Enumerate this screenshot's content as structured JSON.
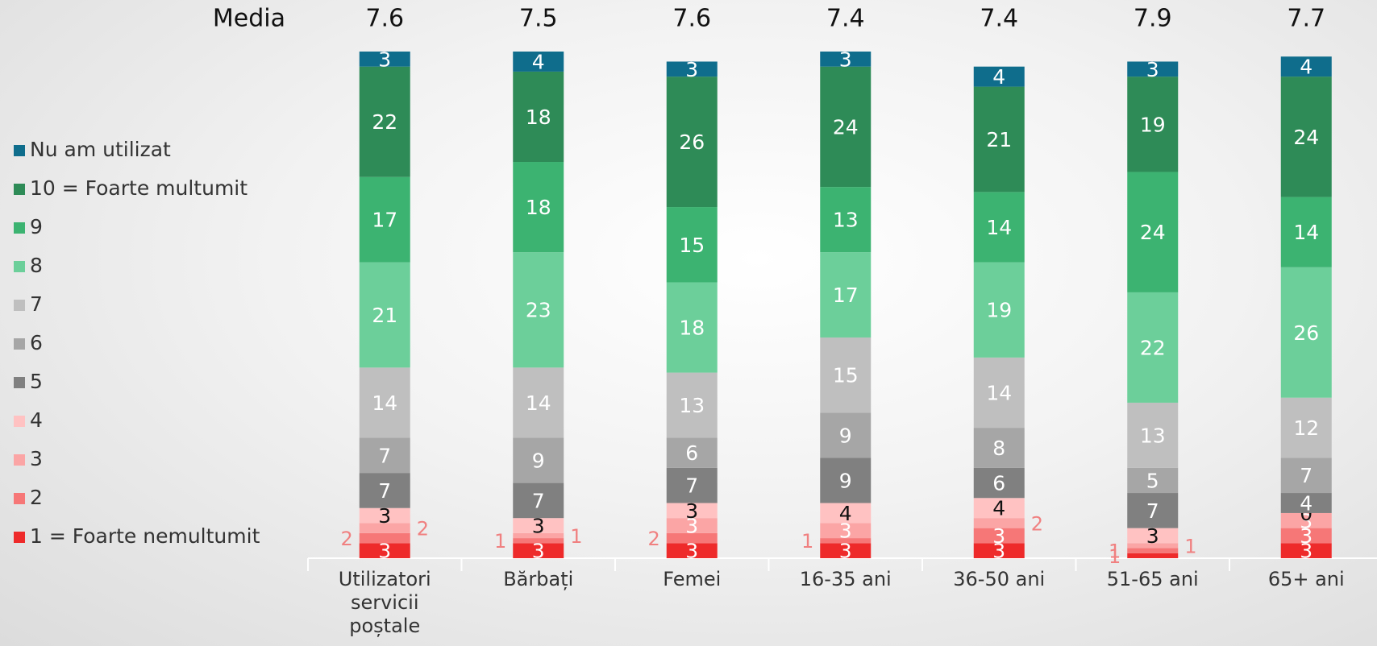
{
  "chart_data": {
    "type": "stacked_bar",
    "categories": [
      "Utilizatori servicii poștale",
      "Bărbați",
      "Femei",
      "16-35 ani",
      "36-50 ani",
      "51-65 ani",
      "65+ ani"
    ],
    "media": {
      "label": "Media",
      "values": [
        7.6,
        7.5,
        7.6,
        7.4,
        7.4,
        7.9,
        7.7
      ]
    },
    "ylim": [
      0,
      101
    ],
    "legend": "left",
    "series": [
      {
        "name": "1 = Foarte nemultumit",
        "color": "#ee2a2a",
        "values": [
          3,
          3,
          3,
          3,
          3,
          1,
          3
        ]
      },
      {
        "name": "2",
        "color": "#f67777",
        "values": [
          2,
          1,
          2,
          1,
          3,
          1,
          3
        ]
      },
      {
        "name": "3",
        "color": "#fba5a5",
        "values": [
          2,
          1,
          3,
          3,
          2,
          1,
          3
        ]
      },
      {
        "name": "4",
        "color": "#ffc2c2",
        "values": [
          3,
          3,
          3,
          4,
          4,
          3,
          0
        ]
      },
      {
        "name": "5",
        "color": "#808080",
        "values": [
          7,
          7,
          7,
          9,
          6,
          7,
          4
        ]
      },
      {
        "name": "6",
        "color": "#a6a6a6",
        "values": [
          7,
          9,
          6,
          9,
          8,
          5,
          7
        ]
      },
      {
        "name": "7",
        "color": "#bfbfbf",
        "values": [
          14,
          14,
          13,
          15,
          14,
          13,
          12
        ]
      },
      {
        "name": "8",
        "color": "#6ccf9a",
        "values": [
          21,
          23,
          18,
          17,
          19,
          22,
          26
        ]
      },
      {
        "name": "9",
        "color": "#3cb371",
        "values": [
          17,
          18,
          15,
          13,
          14,
          24,
          14
        ]
      },
      {
        "name": "10 = Foarte multumit",
        "color": "#2e8b57",
        "values": [
          22,
          18,
          26,
          24,
          21,
          19,
          24
        ]
      },
      {
        "name": "Nu am utilizat",
        "color": "#0f6d8c",
        "values": [
          3,
          4,
          3,
          3,
          4,
          3,
          4
        ]
      }
    ]
  }
}
